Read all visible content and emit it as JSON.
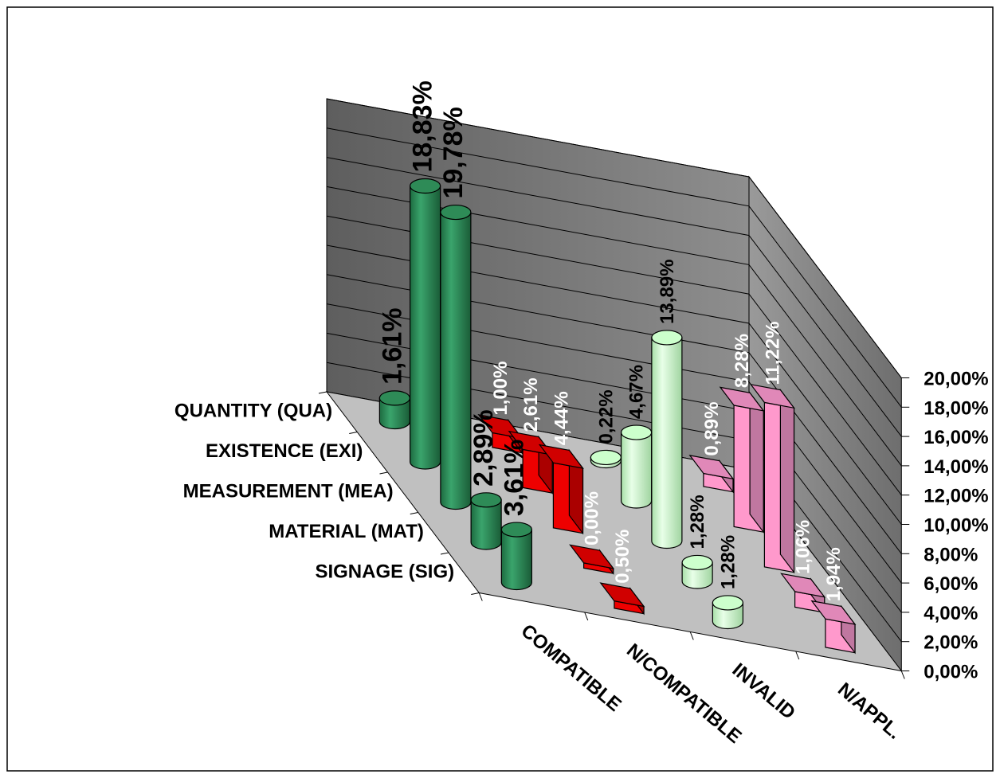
{
  "chart_data": {
    "type": "bar",
    "categories": [
      "COMPATIBLE",
      "N/COMPATIBLE",
      "INVALID",
      "N/APPL."
    ],
    "series": [
      {
        "name": "QUANTITY (QUA)",
        "values": [
          "1,61%",
          "1,00%",
          "0,22%",
          "0,89%"
        ],
        "numeric": [
          1.61,
          1.0,
          0.22,
          0.89
        ]
      },
      {
        "name": "EXISTENCE (EXI)",
        "values": [
          "18,83%",
          "2,61%",
          "4,67%",
          "8,28%"
        ],
        "numeric": [
          18.83,
          2.61,
          4.67,
          8.28
        ]
      },
      {
        "name": "MEASUREMENT (MEA)",
        "values": [
          "19,78%",
          "4,44%",
          "13,89%",
          "11,22%"
        ],
        "numeric": [
          19.78,
          4.44,
          13.89,
          11.22
        ]
      },
      {
        "name": "MATERIAL (MAT)",
        "values": [
          "2,89%",
          "0,00%",
          "1,28%",
          "1,06%"
        ],
        "numeric": [
          2.89,
          0.0,
          1.28,
          1.06
        ]
      },
      {
        "name": "SIGNAGE (SIG)",
        "values": [
          "3,61%",
          "0,50%",
          "1,28%",
          "1,94%"
        ],
        "numeric": [
          3.61,
          0.5,
          1.28,
          1.94
        ]
      }
    ],
    "z_ticks": [
      "0,00%",
      "2,00%",
      "4,00%",
      "6,00%",
      "8,00%",
      "10,00%",
      "12,00%",
      "14,00%",
      "16,00%",
      "18,00%",
      "20,00%"
    ],
    "zlim": [
      0,
      20
    ],
    "grid": true,
    "colors": {
      "COMPATIBLE": "#2e8b57",
      "N/COMPATIBLE": "#ee0000",
      "INVALID": "#ccffcc",
      "N/APPL.": "#ff99cc",
      "wall": "#7a7a7a",
      "floor": "#c0c0c0"
    },
    "shapes": {
      "COMPATIBLE": "cylinder",
      "N/COMPATIBLE": "box",
      "INVALID": "cylinder",
      "N/APPL.": "box"
    }
  }
}
